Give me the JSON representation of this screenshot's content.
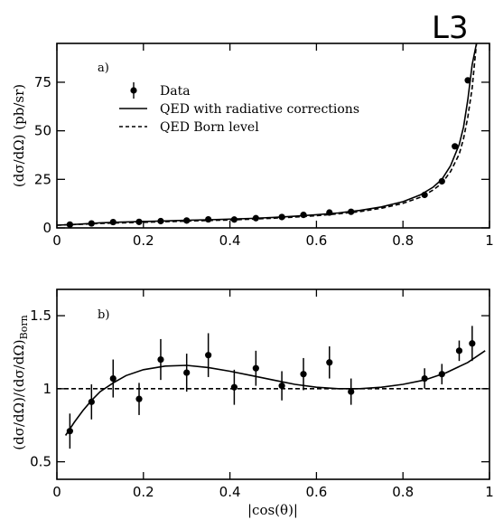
{
  "figure": {
    "logo_text": "L3"
  },
  "chart_data": [
    {
      "type": "scatter",
      "panel_label": "a)",
      "xlabel": "",
      "ylabel": "(dσ/dΩ) (pb/sr)",
      "xlim": [
        0,
        1
      ],
      "ylim": [
        0,
        95
      ],
      "xticks": [
        0,
        0.2,
        0.4,
        0.6,
        0.8,
        1
      ],
      "xtick_labels": [
        "0",
        "0.2",
        "0.4",
        "0.6",
        "0.8",
        "1"
      ],
      "yticks": [
        0,
        25,
        50,
        75
      ],
      "ytick_labels": [
        "0",
        "25",
        "50",
        "75"
      ],
      "legend": {
        "placement": "top-left",
        "entries": [
          {
            "label": "Data",
            "marker": "point-with-error"
          },
          {
            "label": "QED with radiative corrections",
            "marker": "solid-line"
          },
          {
            "label": "QED Born level",
            "marker": "dashed-line"
          }
        ]
      },
      "series": [
        {
          "name": "Data",
          "kind": "points",
          "x": [
            0.03,
            0.08,
            0.13,
            0.19,
            0.24,
            0.3,
            0.35,
            0.41,
            0.46,
            0.52,
            0.57,
            0.63,
            0.68,
            0.85,
            0.89,
            0.92,
            0.95
          ],
          "y": [
            1.7,
            2.3,
            3.0,
            3.1,
            3.5,
            3.8,
            4.4,
            4.3,
            5.0,
            5.6,
            6.7,
            7.9,
            8.3,
            17,
            24,
            42,
            76
          ]
        },
        {
          "name": "QED with radiative corrections",
          "kind": "line",
          "style": "solid",
          "x": [
            0,
            0.05,
            0.1,
            0.15,
            0.2,
            0.25,
            0.3,
            0.35,
            0.4,
            0.45,
            0.5,
            0.55,
            0.6,
            0.65,
            0.7,
            0.75,
            0.8,
            0.84,
            0.87,
            0.89,
            0.91,
            0.93,
            0.94,
            0.95,
            0.96,
            0.97
          ],
          "y": [
            1.4,
            1.9,
            2.6,
            3.0,
            3.3,
            3.6,
            3.9,
            4.2,
            4.5,
            4.9,
            5.4,
            6.0,
            6.8,
            7.7,
            9.0,
            10.8,
            13.5,
            17,
            21,
            25,
            32,
            43,
            52,
            66,
            84,
            98
          ]
        },
        {
          "name": "QED Born level",
          "kind": "line",
          "style": "dashed",
          "x": [
            0,
            0.05,
            0.1,
            0.15,
            0.2,
            0.25,
            0.3,
            0.35,
            0.4,
            0.45,
            0.5,
            0.55,
            0.6,
            0.65,
            0.7,
            0.75,
            0.8,
            0.84,
            0.87,
            0.89,
            0.91,
            0.93,
            0.94,
            0.95,
            0.96,
            0.97
          ],
          "y": [
            1.4,
            1.8,
            2.3,
            2.6,
            2.9,
            3.2,
            3.5,
            3.8,
            4.1,
            4.5,
            5.0,
            5.6,
            6.3,
            7.2,
            8.4,
            10.1,
            12.6,
            15.8,
            19.5,
            23,
            29,
            38,
            46,
            57,
            72,
            95
          ]
        }
      ]
    },
    {
      "type": "scatter",
      "panel_label": "b)",
      "xlabel": "|cos(θ)|",
      "ylabel": "(dσ/dΩ)/(dσ/dΩ)",
      "ylabel_subscript": "Born",
      "xlim": [
        0,
        1
      ],
      "ylim": [
        0.38,
        1.68
      ],
      "xticks": [
        0,
        0.2,
        0.4,
        0.6,
        0.8,
        1
      ],
      "xtick_labels": [
        "0",
        "0.2",
        "0.4",
        "0.6",
        "0.8",
        "1"
      ],
      "yticks": [
        0.5,
        1,
        1.5
      ],
      "ytick_labels": [
        "0.5",
        "1",
        "1.5"
      ],
      "series": [
        {
          "name": "Data",
          "kind": "points",
          "x": [
            0.03,
            0.08,
            0.13,
            0.19,
            0.24,
            0.3,
            0.35,
            0.41,
            0.46,
            0.52,
            0.57,
            0.63,
            0.68,
            0.85,
            0.89,
            0.93,
            0.96
          ],
          "y": [
            0.71,
            0.91,
            1.07,
            0.93,
            1.2,
            1.11,
            1.23,
            1.01,
            1.14,
            1.02,
            1.1,
            1.18,
            0.98,
            1.07,
            1.1,
            1.26,
            1.31
          ],
          "err": [
            0.12,
            0.12,
            0.13,
            0.11,
            0.14,
            0.13,
            0.15,
            0.12,
            0.12,
            0.1,
            0.11,
            0.11,
            0.09,
            0.07,
            0.07,
            0.07,
            0.12
          ]
        },
        {
          "name": "QED with radiative corrections",
          "kind": "line",
          "style": "solid",
          "x": [
            0.02,
            0.04,
            0.06,
            0.08,
            0.1,
            0.13,
            0.16,
            0.2,
            0.25,
            0.3,
            0.35,
            0.4,
            0.45,
            0.5,
            0.55,
            0.6,
            0.65,
            0.7,
            0.75,
            0.8,
            0.85,
            0.9,
            0.95,
            0.99
          ],
          "y": [
            0.68,
            0.77,
            0.85,
            0.92,
            0.98,
            1.04,
            1.09,
            1.13,
            1.155,
            1.16,
            1.145,
            1.12,
            1.09,
            1.06,
            1.03,
            1.01,
            1.0,
            1.0,
            1.01,
            1.03,
            1.06,
            1.11,
            1.18,
            1.26
          ]
        },
        {
          "name": "QED Born level",
          "kind": "line",
          "style": "dashed",
          "x": [
            0,
            1
          ],
          "y": [
            1,
            1
          ]
        }
      ]
    }
  ]
}
